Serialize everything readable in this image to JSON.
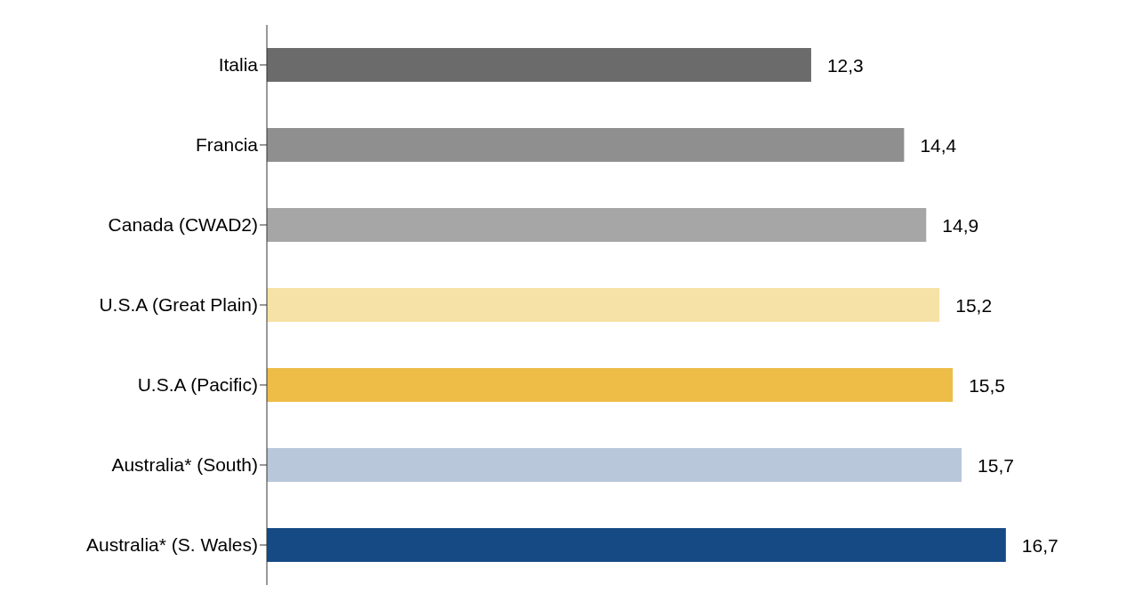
{
  "chart_data": {
    "type": "bar",
    "orientation": "horizontal",
    "categories": [
      "Italia",
      "Francia",
      "Canada (CWAD2)",
      "U.S.A (Great Plain)",
      "U.S.A (Pacific)",
      "Australia* (South)",
      "Australia* (S. Wales)"
    ],
    "values": [
      12.3,
      14.4,
      14.9,
      15.2,
      15.5,
      15.7,
      16.7
    ],
    "value_labels": [
      "12,3",
      "14,4",
      "14,9",
      "15,2",
      "15,5",
      "15,7",
      "16,7"
    ],
    "colors": [
      "#6b6b6b",
      "#8f8f8f",
      "#a6a6a6",
      "#f6e2a6",
      "#edbd48",
      "#b9c7da",
      "#154a84"
    ],
    "tick_labels": "y"
  }
}
